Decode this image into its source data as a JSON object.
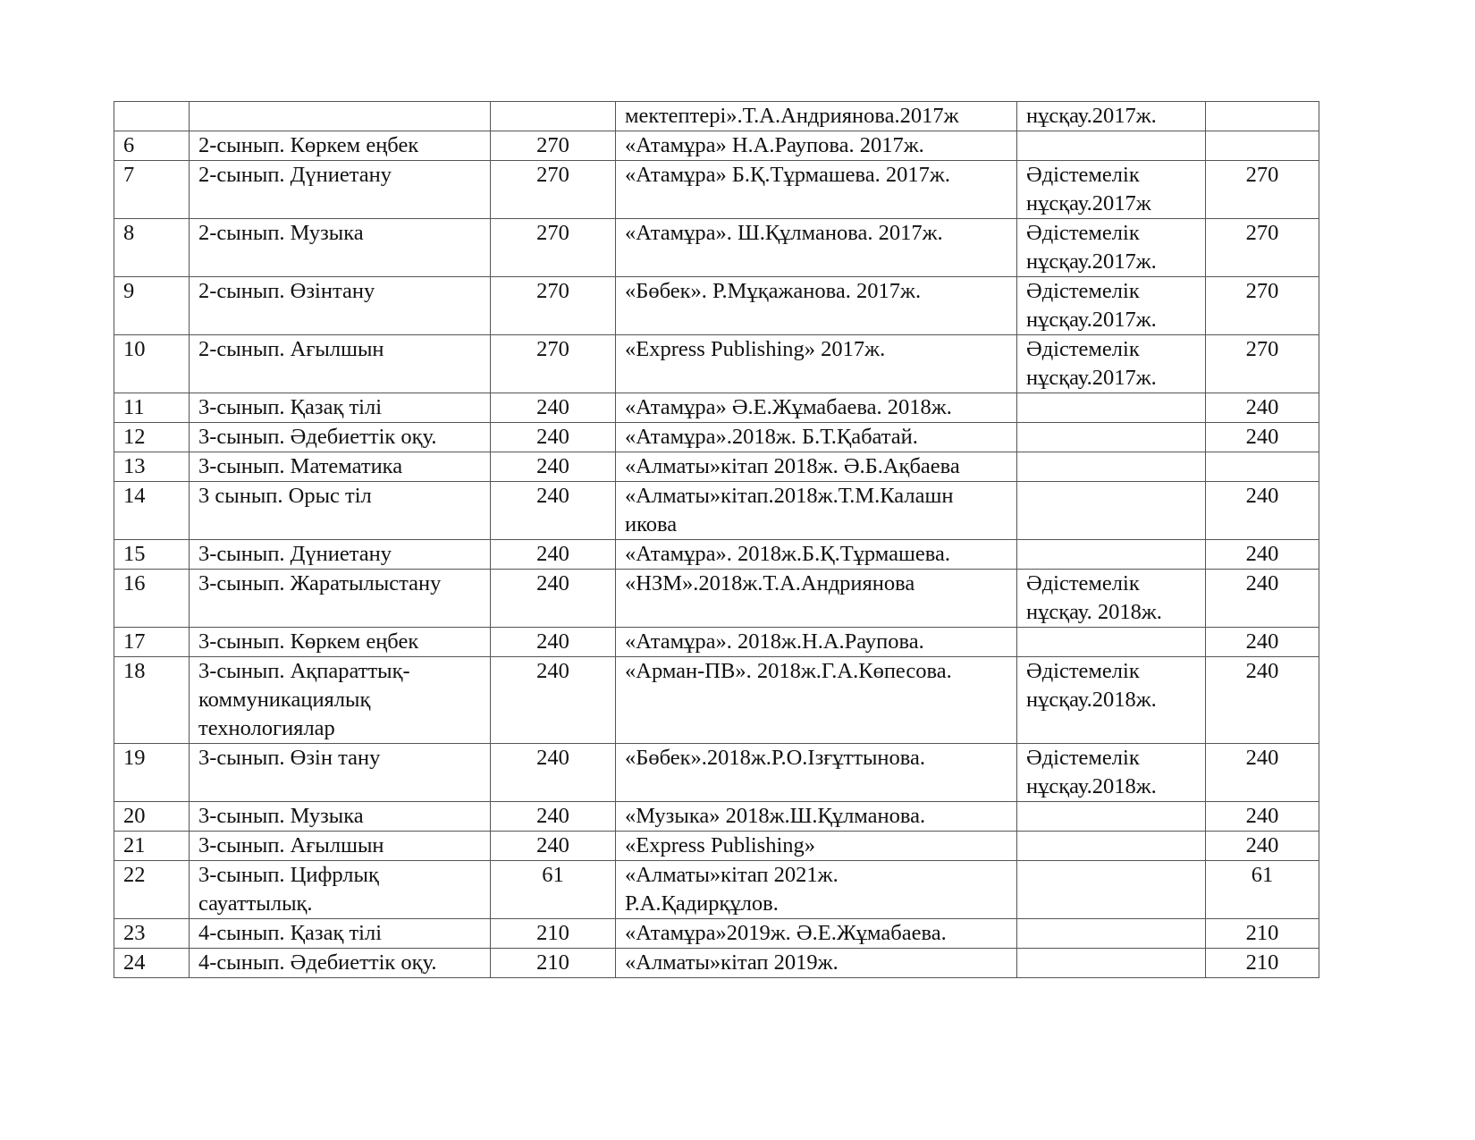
{
  "rows": [
    {
      "n": "",
      "subject": "",
      "qty": "",
      "textbook": "мектептері».Т.А.Андриянова.2017ж",
      "method": "нұсқау.2017ж.",
      "qty2": ""
    },
    {
      "n": "6",
      "subject": "2-сынып. Көркем еңбек",
      "qty": "270",
      "textbook": "«Атамұра» Н.А.Раупова. 2017ж.",
      "method": "",
      "qty2": ""
    },
    {
      "n": "7",
      "subject": "2-сынып. Дүниетану",
      "qty": "270",
      "textbook": "«Атамұра» Б.Қ.Тұрмашева. 2017ж.",
      "method": "Әдістемелік\nнұсқау.2017ж",
      "qty2": "270"
    },
    {
      "n": "8",
      "subject": "2-сынып. Музыка",
      "qty": "270",
      "textbook": "«Атамұра». Ш.Құлманова. 2017ж.",
      "method": "Әдістемелік\nнұсқау.2017ж.",
      "qty2": "270"
    },
    {
      "n": "9",
      "subject": "2-сынып. Өзінтану",
      "qty": "270",
      "textbook": "«Бөбек». Р.Мұқажанова. 2017ж.",
      "method": "Әдістемелік\nнұсқау.2017ж.",
      "qty2": "270"
    },
    {
      "n": "10",
      "subject": "2-сынып. Ағылшын",
      "qty": "270",
      "textbook": "«Express Publishing» 2017ж.",
      "method": "Әдістемелік\nнұсқау.2017ж.",
      "qty2": "270"
    },
    {
      "n": "11",
      "subject": "3-сынып. Қазақ тілі",
      "qty": "240",
      "textbook": "«Атамұра» Ә.Е.Жұмабаева. 2018ж.",
      "method": "",
      "qty2": "240"
    },
    {
      "n": "12",
      "subject": "3-сынып. Әдебиеттік оқу.",
      "qty": "240",
      "textbook": "«Атамұра».2018ж. Б.Т.Қабатай.",
      "method": "",
      "qty2": "240"
    },
    {
      "n": "13",
      "subject": "3-сынып. Математика",
      "qty": "240",
      "textbook": "«Алматы»кітап 2018ж. Ә.Б.Ақбаева",
      "method": "",
      "qty2": ""
    },
    {
      "n": "14",
      "subject": "3 сынып. Орыс тіл",
      "qty": "240",
      "textbook": "«Алматы»кітап.2018ж.Т.М.Калашн\nикова",
      "method": "",
      "qty2": "240"
    },
    {
      "n": "15",
      "subject": "3-сынып. Дүниетану",
      "qty": "240",
      "textbook": "«Атамұра». 2018ж.Б.Қ.Тұрмашева.",
      "method": "",
      "qty2": "240"
    },
    {
      "n": "16",
      "subject": "3-сынып. Жаратылыстану",
      "qty": "240",
      "textbook": "«НЗМ».2018ж.Т.А.Андриянова",
      "method": "Әдістемелік\nнұсқау. 2018ж.",
      "qty2": "240"
    },
    {
      "n": "17",
      "subject": "3-сынып. Көркем еңбек",
      "qty": "240",
      "textbook": "«Атамұра». 2018ж.Н.А.Раупова.",
      "method": "",
      "qty2": "240"
    },
    {
      "n": "18",
      "subject": "3-сынып. Ақпараттық-\nкоммуникациялық\nтехнологиялар",
      "qty": "240",
      "textbook": "«Арман-ПВ». 2018ж.Г.А.Көпесова.",
      "method": "Әдістемелік\nнұсқау.2018ж.",
      "qty2": "240"
    },
    {
      "n": "19",
      "subject": "3-сынып. Өзін тану",
      "qty": "240",
      "textbook": "«Бөбек».2018ж.Р.О.Ізғұттынова.",
      "method": "Әдістемелік\nнұсқау.2018ж.",
      "qty2": "240"
    },
    {
      "n": "20",
      "subject": "3-сынып. Музыка",
      "qty": "240",
      "textbook": "«Музыка» 2018ж.Ш.Құлманова.",
      "method": "",
      "qty2": "240"
    },
    {
      "n": "21",
      "subject": "3-сынып. Ағылшын",
      "qty": "240",
      "textbook": "«Express Publishing»",
      "method": "",
      "qty2": "240"
    },
    {
      "n": "22",
      "subject": "3-сынып. Цифрлық\nсауаттылық.",
      "qty": "61",
      "textbook": "«Алматы»кітап 2021ж.\nР.А.Қадирқұлов.",
      "method": "",
      "qty2": "61"
    },
    {
      "n": "23",
      "subject": "4-сынып. Қазақ тілі",
      "qty": "210",
      "textbook": "«Атамұра»2019ж. Ә.Е.Жұмабаева.",
      "method": "",
      "qty2": "210"
    },
    {
      "n": "24",
      "subject": "4-сынып. Әдебиеттік оқу.",
      "qty": "210",
      "textbook": "«Алматы»кітап 2019ж.",
      "method": "",
      "qty2": "210"
    }
  ]
}
